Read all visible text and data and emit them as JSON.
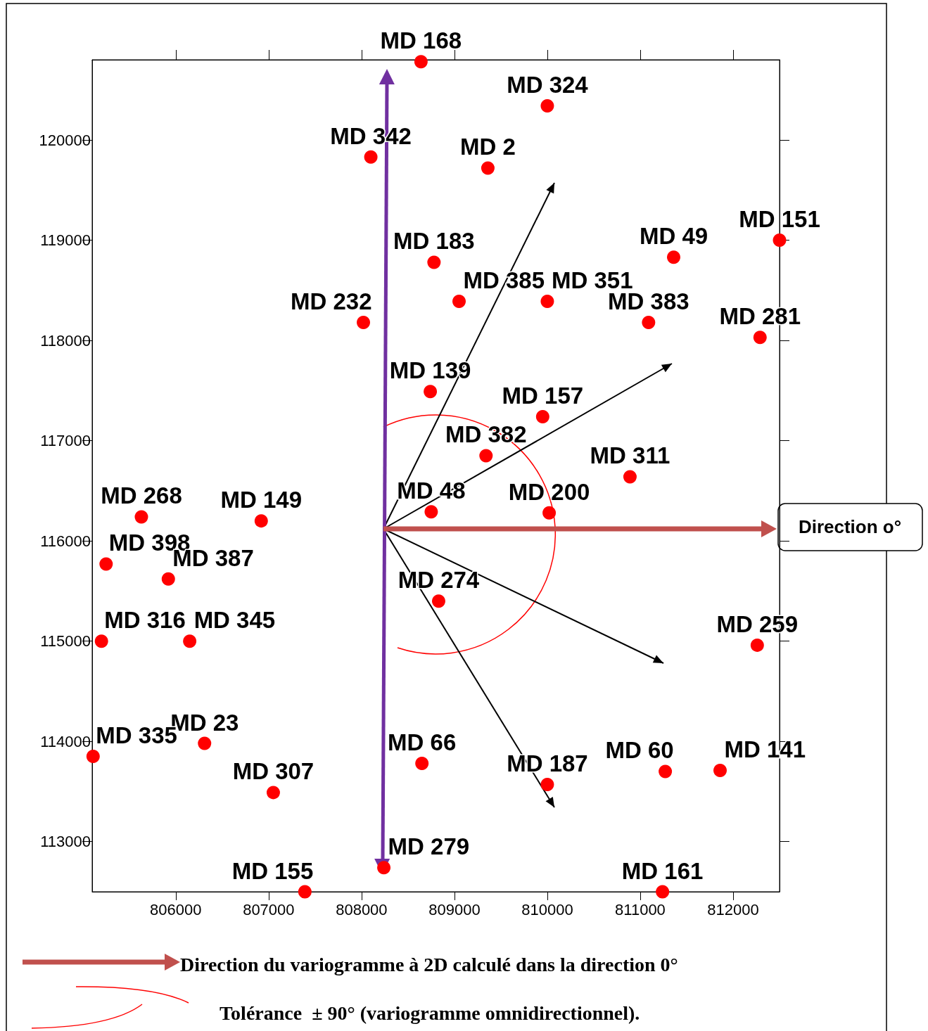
{
  "chart_data": {
    "type": "scatter",
    "marker": "circle",
    "grid": false,
    "xlim": [
      805100,
      812500
    ],
    "ylim": [
      112500,
      120800
    ],
    "xticks": [
      806000,
      807000,
      808000,
      809000,
      810000,
      811000,
      812000
    ],
    "yticks": [
      113000,
      114000,
      115000,
      116000,
      117000,
      118000,
      119000,
      120000
    ],
    "annotations": [
      "Direction o°",
      "Direction du variogramme à 2D calculé dans la direction 0°",
      "Tolérance  ± 90° (variogramme omnidirectionnel)."
    ],
    "series": [
      {
        "color": "#ff0000",
        "x": [
          808640,
          810000,
          808100,
          809360,
          812500,
          811360,
          808780,
          809050,
          810000,
          811090,
          808020,
          812290,
          808740,
          809950,
          809340,
          810890,
          808750,
          810020,
          805630,
          806920,
          805250,
          805920,
          808830,
          805200,
          806150,
          812260,
          806310,
          805110,
          808650,
          807050,
          810000,
          811270,
          811860,
          808240,
          807390,
          811240
        ],
        "values": [
          120780,
          120340,
          119830,
          119720,
          119000,
          118830,
          118780,
          118390,
          118390,
          118180,
          118180,
          118030,
          117490,
          117240,
          116850,
          116640,
          116290,
          116280,
          116240,
          116200,
          115770,
          115620,
          115400,
          115000,
          115000,
          114960,
          113980,
          113850,
          113780,
          113490,
          113570,
          113700,
          113710,
          112740,
          112500,
          112500
        ],
        "value_labels": [
          "MD 168",
          "MD 324",
          "MD 342",
          "MD 2",
          "MD 151",
          "MD 49",
          "MD 183",
          "MD 385",
          "MD 351",
          "MD 383",
          "MD 232",
          "MD 281",
          "MD 139",
          "MD 157",
          "MD 382",
          "MD 311",
          "MD 48",
          "MD 200",
          "MD 268",
          "MD 149",
          "MD 398",
          "MD 387",
          "MD 274",
          "MD 316",
          "MD 345",
          "MD 259",
          "MD 23",
          "MD 335",
          "MD 66",
          "MD 307",
          "MD 187",
          "MD 60",
          "MD 141",
          "MD 279",
          "MD 155",
          "MD 161"
        ]
      }
    ]
  }
}
